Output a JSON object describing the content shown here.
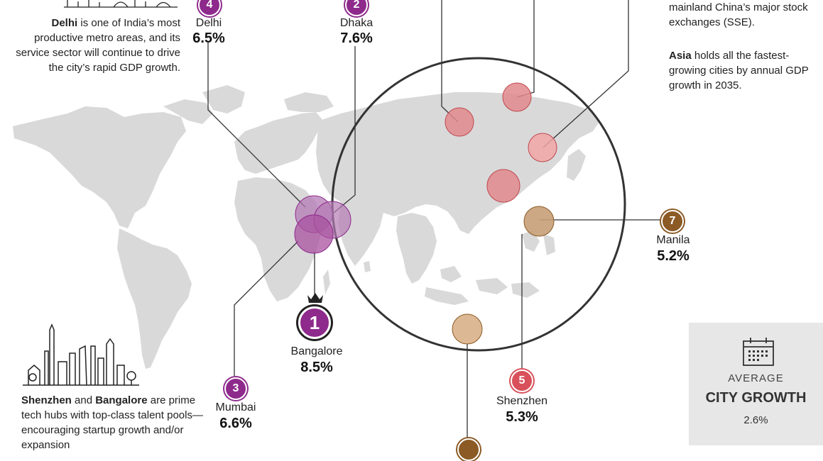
{
  "notes": {
    "delhi": {
      "bold": "Delhi",
      "text": " is one of India’s most productive metro areas, and its service sector will continue to drive the city’s rapid GDP growth."
    },
    "china_tail": "mainland China’s major stock exchanges (SSE).",
    "asia": {
      "bold": "Asia",
      "text": " holds all the fastest-growing cities by annual GDP growth in 2035."
    },
    "tech": {
      "bold1": "Shenzhen",
      "mid": " and ",
      "bold2": "Bangalore",
      "text": " are prime tech hubs with top-class talent pools—encouraging startup growth and/or expansion"
    }
  },
  "cities": [
    {
      "rank": "4",
      "name": "Delhi",
      "value": "6.5%",
      "color": "#8e2a8c"
    },
    {
      "rank": "2",
      "name": "Dhaka",
      "value": "7.6%",
      "color": "#8e2a8c"
    },
    {
      "rank": "1",
      "name": "Bangalore",
      "value": "8.5%",
      "color": "#8e2a8c"
    },
    {
      "rank": "3",
      "name": "Mumbai",
      "value": "6.6%",
      "color": "#8e2a8c"
    },
    {
      "rank": "5",
      "name": "Shenzhen",
      "value": "5.3%",
      "color": "#d9505a"
    },
    {
      "rank": "7",
      "name": "Manila",
      "value": "5.2%",
      "color": "#8b5a25"
    }
  ],
  "average": {
    "label": "AVERAGE",
    "title": "CITY GROWTH",
    "value": "2.6%",
    "icon": "calendar-icon"
  },
  "icons": {
    "crown": "crown-icon"
  },
  "colors": {
    "purple": "#8e2a8c",
    "red": "#d9505a",
    "brown": "#8b5a25",
    "land": "#d9d9da"
  }
}
